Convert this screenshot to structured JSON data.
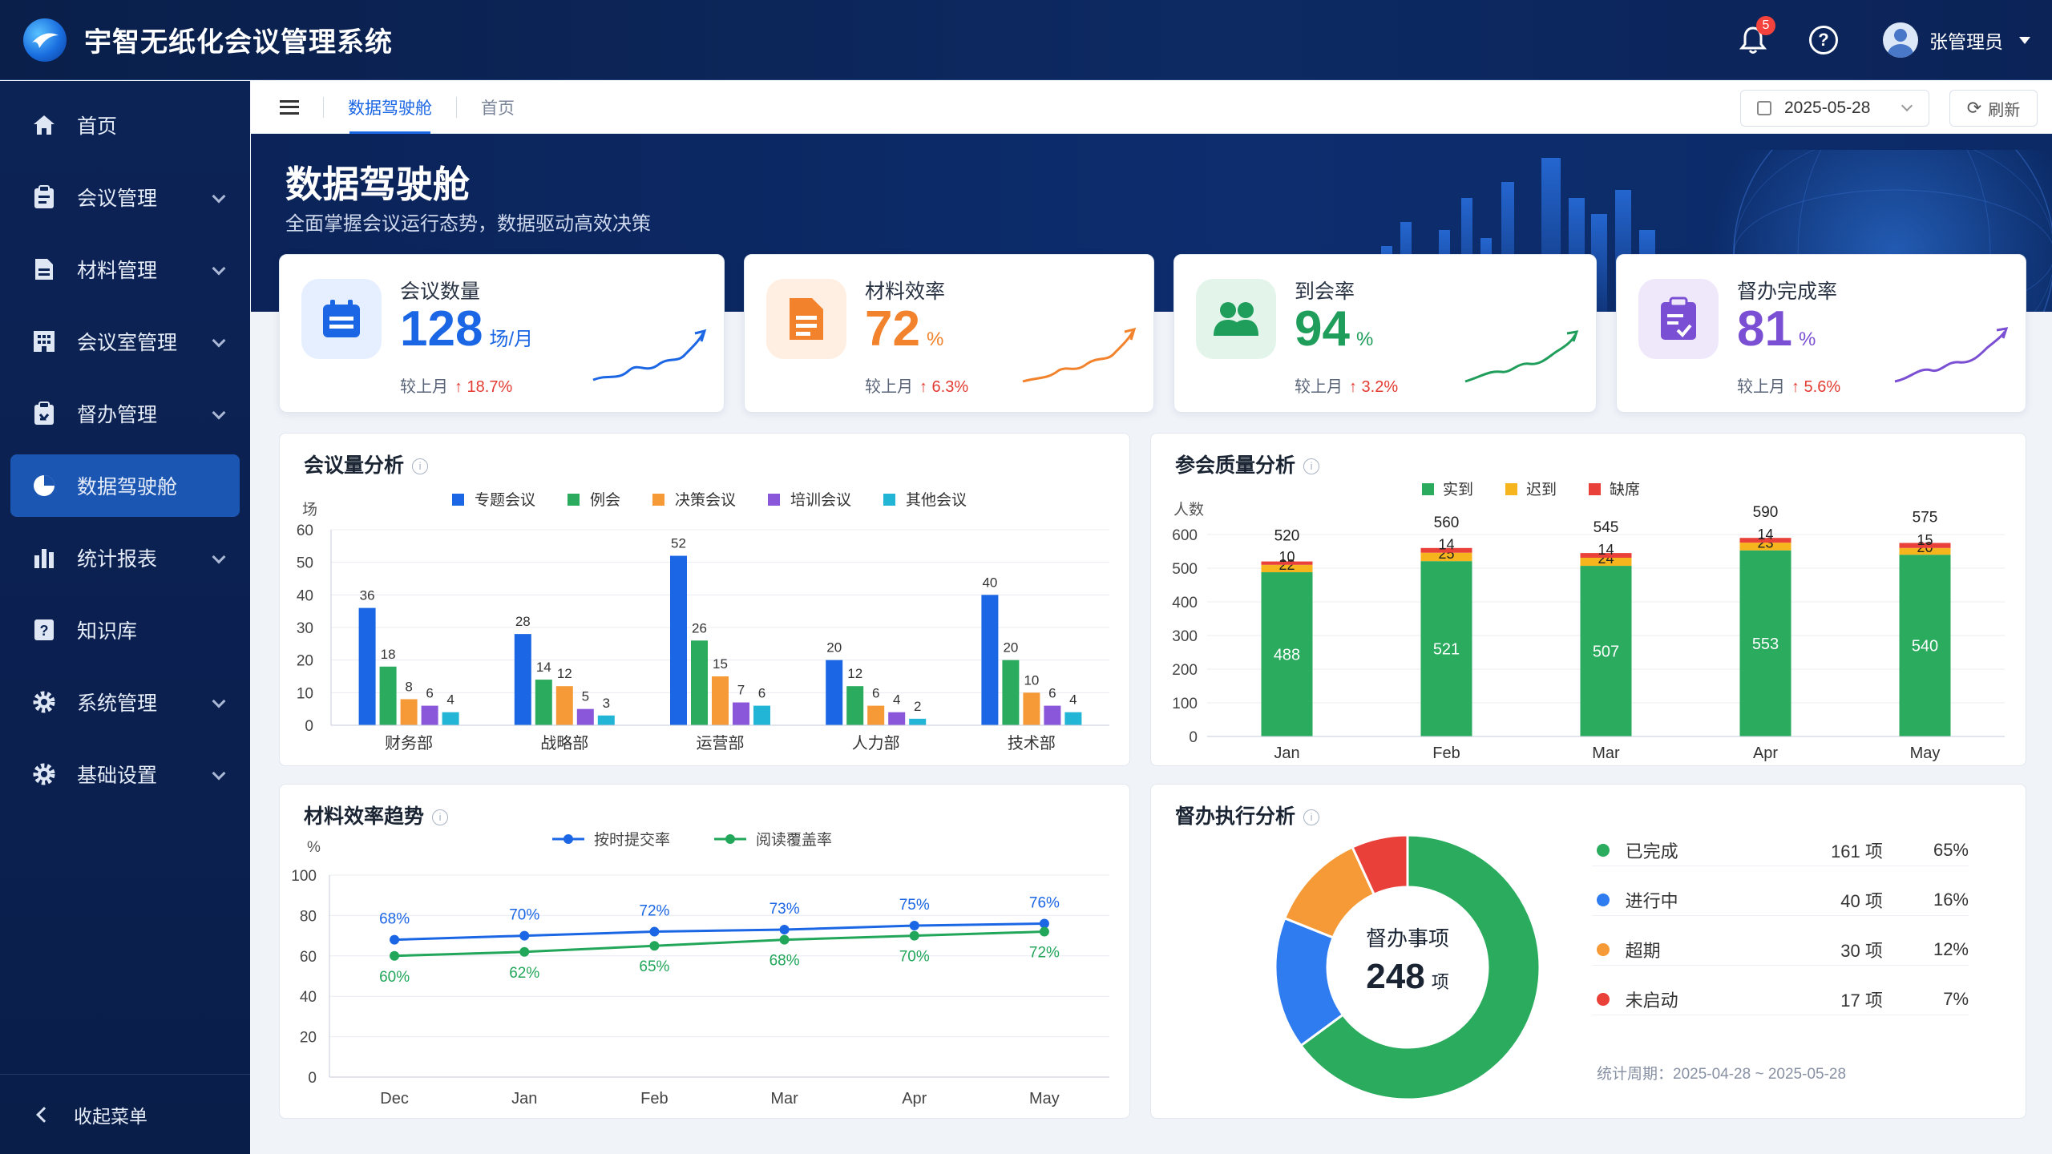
{
  "app": {
    "title": "宇智无纸化会议管理系统",
    "notification_count": "5",
    "user_name": "张管理员"
  },
  "sidebar": {
    "items": [
      {
        "label": "首页",
        "icon": "home-icon"
      },
      {
        "label": "会议管理",
        "icon": "clipboard-icon"
      },
      {
        "label": "材料管理",
        "icon": "document-icon"
      },
      {
        "label": "会议室管理",
        "icon": "building-icon"
      },
      {
        "label": "督办管理",
        "icon": "task-icon"
      },
      {
        "label": "数据驾驶舱",
        "icon": "pie-chart-icon"
      },
      {
        "label": "统计报表",
        "icon": "bar-chart-icon"
      },
      {
        "label": "知识库",
        "icon": "question-book-icon"
      },
      {
        "label": "系统管理",
        "icon": "gear-icon"
      },
      {
        "label": "基础设置",
        "icon": "gear-icon"
      }
    ],
    "collapse_label": "收起菜单"
  },
  "tabs": [
    {
      "label": "数据驾驶舱"
    },
    {
      "label": "首页"
    }
  ],
  "toolbar": {
    "date": "2025-05-28",
    "refresh_label": "刷新"
  },
  "banner": {
    "title": "数据驾驶舱",
    "subtitle": "全面掌握会议运行态势，数据驱动高效决策"
  },
  "kpis": [
    {
      "label": "会议数量",
      "value": "128",
      "unit": "场/月",
      "compare_label": "较上月",
      "change": "↑ 18.7%",
      "color": "#1b66e4",
      "icon": "calendar-icon"
    },
    {
      "label": "材料效率",
      "value": "72",
      "unit": "%",
      "compare_label": "较上月",
      "change": "↑ 6.3%",
      "color": "#f2822b",
      "icon": "document-icon"
    },
    {
      "label": "到会率",
      "value": "94",
      "unit": "%",
      "compare_label": "较上月",
      "change": "↑ 3.2%",
      "color": "#1f9d5a",
      "icon": "people-icon"
    },
    {
      "label": "督办完成率",
      "value": "81",
      "unit": "%",
      "compare_label": "较上月",
      "change": "↑ 5.6%",
      "color": "#7a4fd3",
      "icon": "checklist-icon"
    }
  ],
  "panels": {
    "meetings": {
      "title": "会议量分析"
    },
    "attendance": {
      "title": "参会质量分析"
    },
    "materials": {
      "title": "材料效率趋势"
    },
    "supervision": {
      "title": "督办执行分析"
    }
  },
  "chart_data": [
    {
      "type": "bar",
      "title": "会议量分析",
      "ylabel": "场",
      "ylim": [
        0,
        60
      ],
      "yticks": [
        0,
        10,
        20,
        30,
        40,
        50,
        60
      ],
      "categories": [
        "财务部",
        "战略部",
        "运营部",
        "人力部",
        "技术部"
      ],
      "series": [
        {
          "name": "专题会议",
          "color": "#1b66e4",
          "values": [
            36,
            28,
            52,
            20,
            40
          ]
        },
        {
          "name": "例会",
          "color": "#2aab5e",
          "values": [
            18,
            14,
            26,
            12,
            20
          ]
        },
        {
          "name": "决策会议",
          "color": "#f59a36",
          "values": [
            8,
            12,
            15,
            6,
            10
          ]
        },
        {
          "name": "培训会议",
          "color": "#8a57db",
          "values": [
            6,
            5,
            7,
            4,
            6
          ]
        },
        {
          "name": "其他会议",
          "color": "#22b5d6",
          "values": [
            4,
            3,
            6,
            2,
            4
          ]
        }
      ],
      "legend": "top",
      "grid": true
    },
    {
      "type": "bar",
      "stacked": true,
      "title": "参会质量分析",
      "ylabel": "人数",
      "ylim": [
        0,
        600
      ],
      "yticks": [
        0,
        100,
        200,
        300,
        400,
        500,
        600
      ],
      "categories": [
        "Jan",
        "Feb",
        "Mar",
        "Apr",
        "May"
      ],
      "totals": [
        520,
        560,
        545,
        590,
        575
      ],
      "series": [
        {
          "name": "实到",
          "color": "#2aab5e",
          "values": [
            488,
            521,
            507,
            553,
            540
          ]
        },
        {
          "name": "迟到",
          "color": "#f6b51d",
          "values": [
            22,
            25,
            24,
            23,
            20
          ]
        },
        {
          "name": "缺席",
          "color": "#e9413a",
          "values": [
            10,
            14,
            14,
            14,
            15
          ]
        }
      ],
      "legend": "top",
      "grid": true
    },
    {
      "type": "line",
      "title": "材料效率趋势",
      "ylabel": "%",
      "ylim": [
        0,
        100
      ],
      "yticks": [
        0,
        20,
        40,
        60,
        80,
        100
      ],
      "x": [
        "Dec",
        "Jan",
        "Feb",
        "Mar",
        "Apr",
        "May"
      ],
      "series": [
        {
          "name": "按时提交率",
          "color": "#1b66e4",
          "values": [
            68,
            70,
            72,
            73,
            75,
            76
          ],
          "labels": [
            "68%",
            "70%",
            "72%",
            "73%",
            "75%",
            "76%"
          ]
        },
        {
          "name": "阅读覆盖率",
          "color": "#22a65a",
          "values": [
            60,
            62,
            65,
            68,
            70,
            72
          ],
          "labels": [
            "60%",
            "62%",
            "65%",
            "68%",
            "70%",
            "72%"
          ]
        }
      ],
      "legend": "top",
      "grid": true
    },
    {
      "type": "pie",
      "title": "督办执行分析",
      "center_label": "督办事项",
      "center_value": "248",
      "center_unit": "项",
      "slices": [
        {
          "name": "已完成",
          "value": 161,
          "count": "161 项",
          "percent": "65%",
          "color": "#2aab5e"
        },
        {
          "name": "进行中",
          "value": 40,
          "count": "40 项",
          "percent": "16%",
          "color": "#2f7cf0"
        },
        {
          "name": "超期",
          "value": 30,
          "count": "30 项",
          "percent": "12%",
          "color": "#f59a36"
        },
        {
          "name": "未启动",
          "value": 17,
          "count": "17 项",
          "percent": "7%",
          "color": "#e9413a"
        }
      ],
      "period": "统计周期：2025-04-28 ~ 2025-05-28"
    }
  ]
}
